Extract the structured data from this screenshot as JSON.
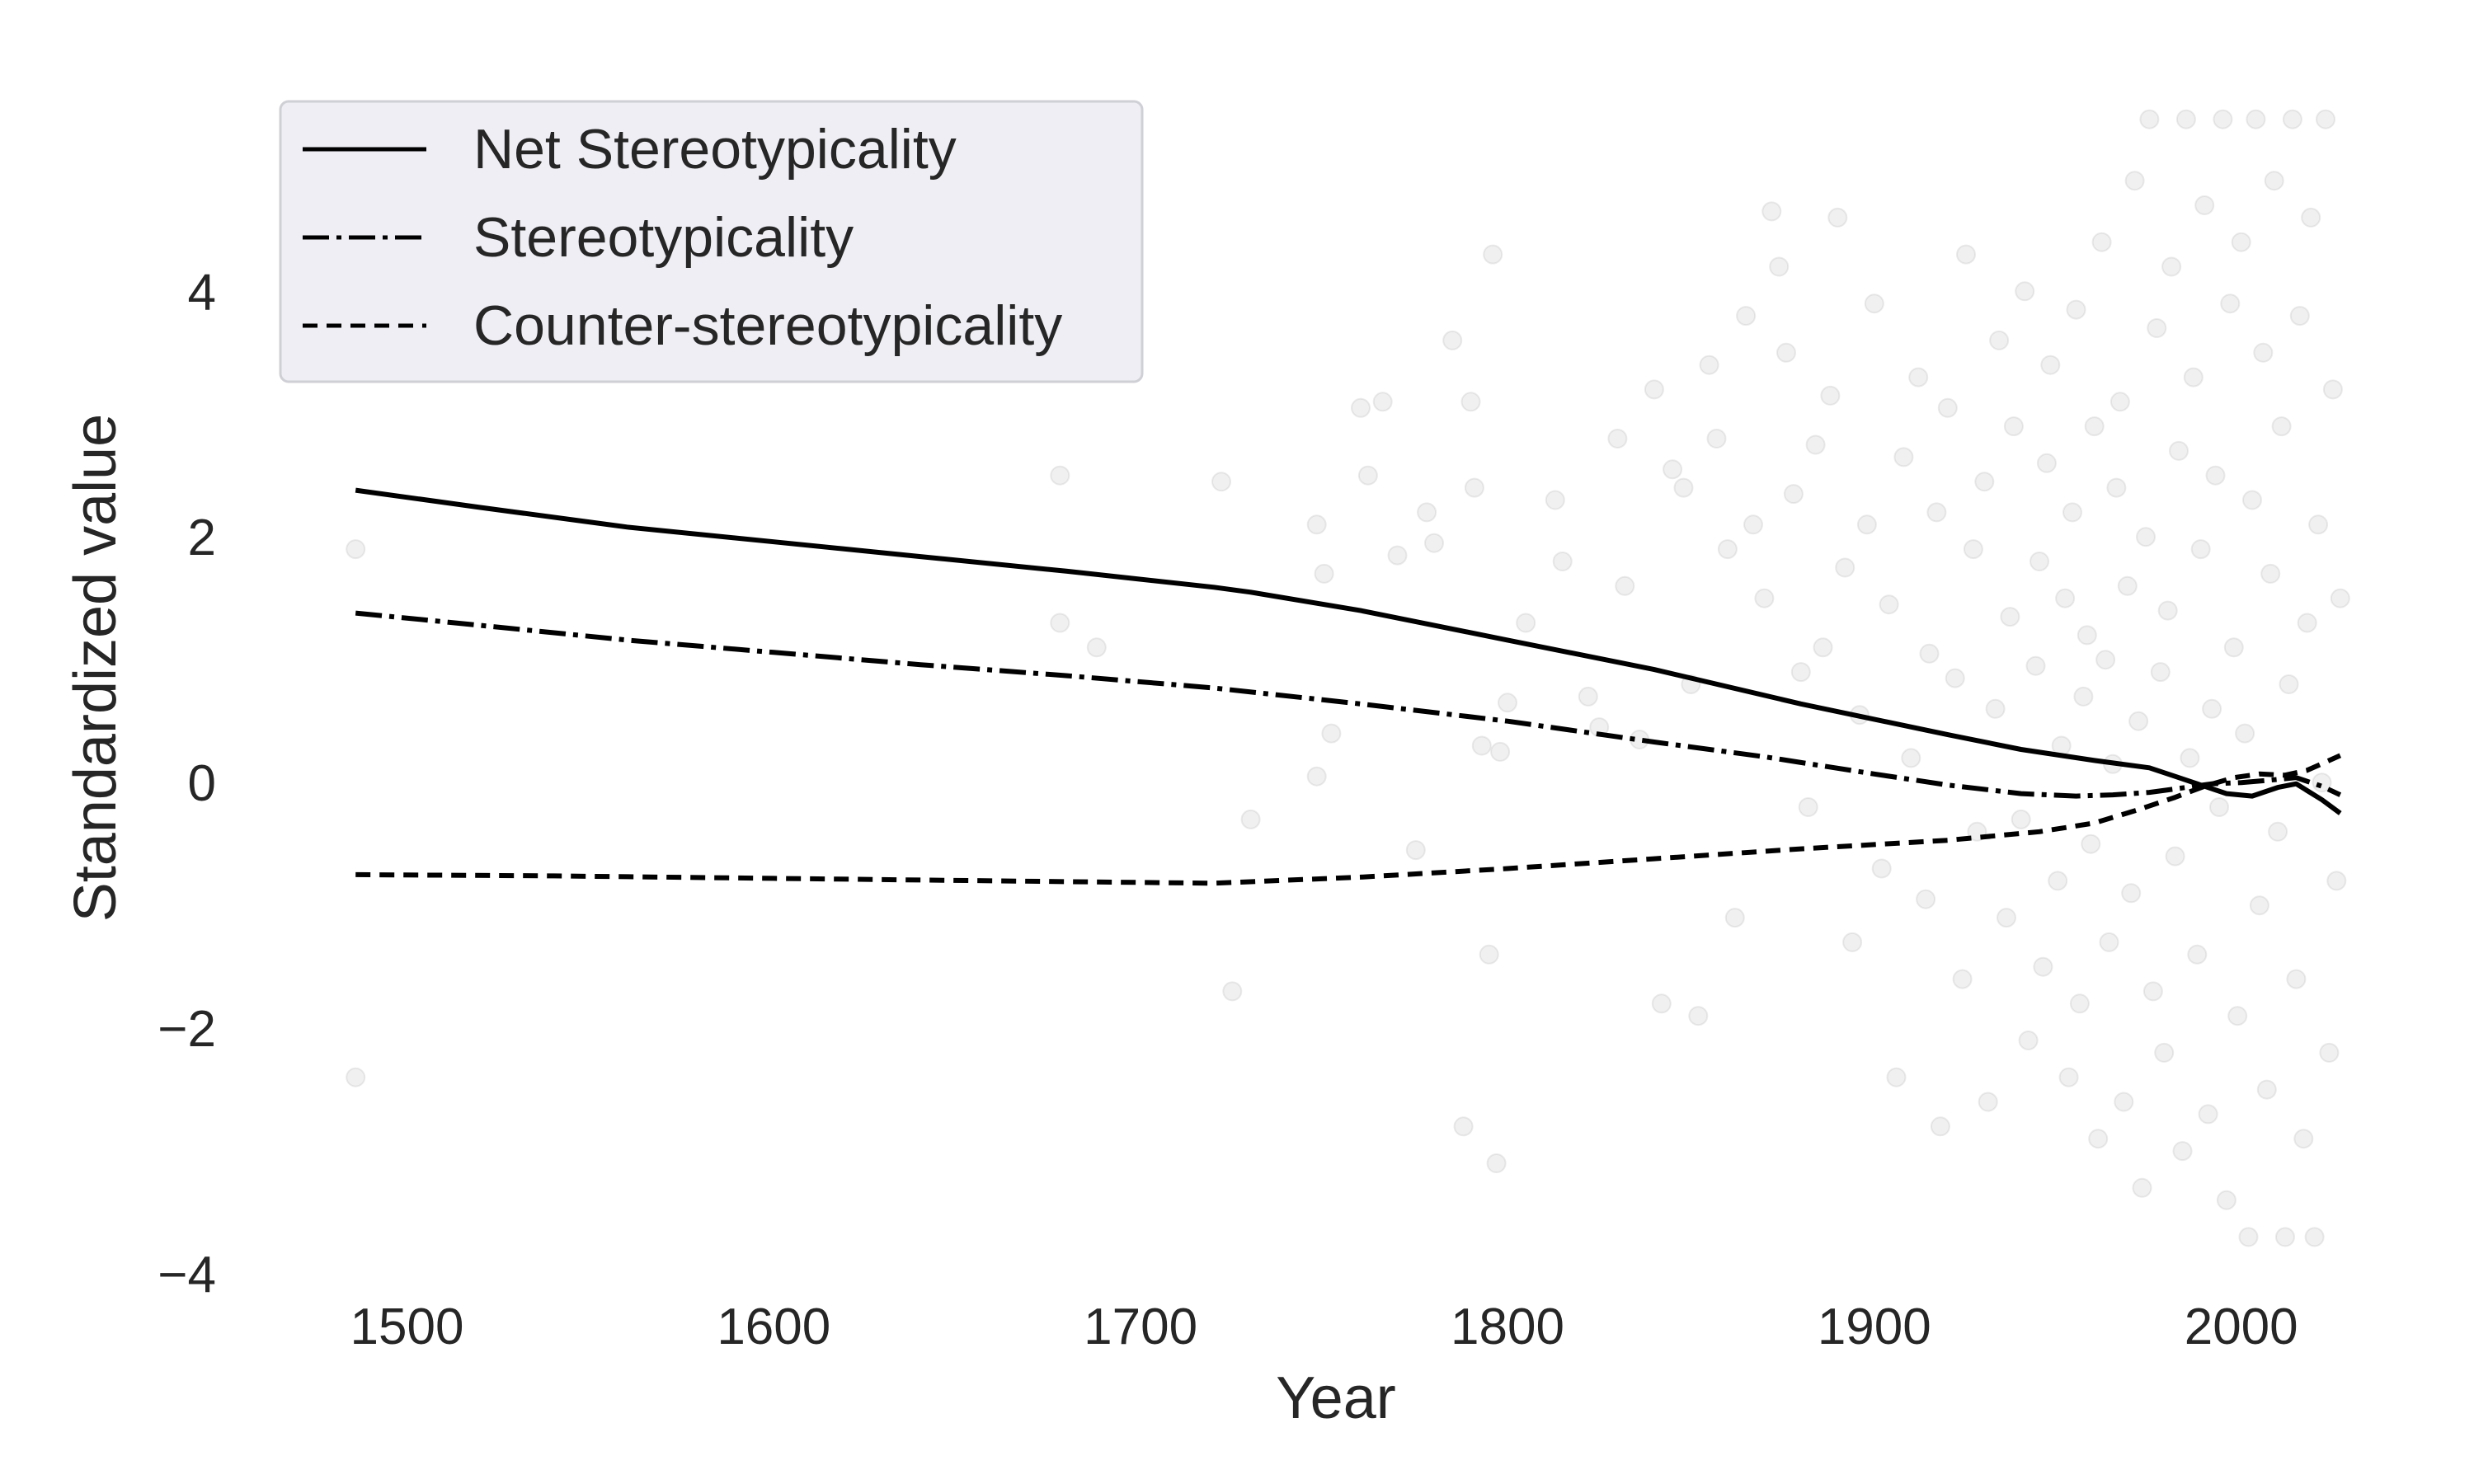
{
  "chart_data": {
    "type": "scatter",
    "title": "",
    "xlabel": "Year",
    "ylabel": "Standardized value",
    "xlim": [
      1470,
      2032
    ],
    "ylim": [
      -4.1,
      5.7
    ],
    "xticks": [
      1500,
      1600,
      1700,
      1800,
      1900,
      2000
    ],
    "yticks": [
      -4,
      -2,
      0,
      2,
      4
    ],
    "xtick_labels": [
      "1500",
      "1600",
      "1700",
      "1800",
      "1900",
      "2000"
    ],
    "ytick_labels": [
      "−4",
      "−2",
      "0",
      "2",
      "4"
    ],
    "grid": false,
    "legend_position": "top-left",
    "scatter": {
      "name": "observations",
      "color": "#cccccc",
      "points": [
        [
          1486,
          1.9
        ],
        [
          1486,
          -2.4
        ],
        [
          1678,
          2.5
        ],
        [
          1678,
          1.3
        ],
        [
          1688,
          1.1
        ],
        [
          1722,
          2.45
        ],
        [
          1725,
          -1.7
        ],
        [
          1730,
          -0.3
        ],
        [
          1748,
          2.1
        ],
        [
          1748,
          0.05
        ],
        [
          1750,
          1.7
        ],
        [
          1752,
          0.4
        ],
        [
          1760,
          3.05
        ],
        [
          1762,
          2.5
        ],
        [
          1766,
          3.1
        ],
        [
          1770,
          1.85
        ],
        [
          1775,
          -0.55
        ],
        [
          1778,
          2.2
        ],
        [
          1780,
          1.95
        ],
        [
          1785,
          3.6
        ],
        [
          1788,
          -2.8
        ],
        [
          1790,
          3.1
        ],
        [
          1791,
          2.4
        ],
        [
          1793,
          0.3
        ],
        [
          1795,
          -1.4
        ],
        [
          1796,
          4.3
        ],
        [
          1797,
          -3.1
        ],
        [
          1798,
          0.25
        ],
        [
          1800,
          0.65
        ],
        [
          1805,
          1.3
        ],
        [
          1813,
          2.3
        ],
        [
          1815,
          1.8
        ],
        [
          1822,
          0.7
        ],
        [
          1825,
          0.45
        ],
        [
          1830,
          2.8
        ],
        [
          1832,
          1.6
        ],
        [
          1836,
          0.35
        ],
        [
          1840,
          3.2
        ],
        [
          1842,
          -1.8
        ],
        [
          1845,
          2.55
        ],
        [
          1848,
          2.4
        ],
        [
          1850,
          0.8
        ],
        [
          1852,
          -1.9
        ],
        [
          1855,
          3.4
        ],
        [
          1857,
          2.8
        ],
        [
          1860,
          1.9
        ],
        [
          1862,
          -1.1
        ],
        [
          1865,
          3.8
        ],
        [
          1867,
          2.1
        ],
        [
          1870,
          1.5
        ],
        [
          1872,
          4.65
        ],
        [
          1874,
          4.2
        ],
        [
          1876,
          3.5
        ],
        [
          1878,
          2.35
        ],
        [
          1880,
          0.9
        ],
        [
          1882,
          -0.2
        ],
        [
          1884,
          2.75
        ],
        [
          1886,
          1.1
        ],
        [
          1888,
          3.15
        ],
        [
          1890,
          4.6
        ],
        [
          1892,
          1.75
        ],
        [
          1894,
          -1.3
        ],
        [
          1896,
          0.55
        ],
        [
          1898,
          2.1
        ],
        [
          1900,
          3.9
        ],
        [
          1902,
          -0.7
        ],
        [
          1904,
          1.45
        ],
        [
          1906,
          -2.4
        ],
        [
          1908,
          2.65
        ],
        [
          1910,
          0.2
        ],
        [
          1912,
          3.3
        ],
        [
          1914,
          -0.95
        ],
        [
          1915,
          1.05
        ],
        [
          1917,
          2.2
        ],
        [
          1918,
          -2.8
        ],
        [
          1920,
          3.05
        ],
        [
          1922,
          0.85
        ],
        [
          1924,
          -1.6
        ],
        [
          1925,
          4.3
        ],
        [
          1927,
          1.9
        ],
        [
          1928,
          -0.4
        ],
        [
          1930,
          2.45
        ],
        [
          1931,
          -2.6
        ],
        [
          1933,
          0.6
        ],
        [
          1934,
          3.6
        ],
        [
          1936,
          -1.1
        ],
        [
          1937,
          1.35
        ],
        [
          1938,
          2.9
        ],
        [
          1940,
          -0.3
        ],
        [
          1941,
          4.0
        ],
        [
          1942,
          -2.1
        ],
        [
          1944,
          0.95
        ],
        [
          1945,
          1.8
        ],
        [
          1946,
          -1.5
        ],
        [
          1947,
          2.6
        ],
        [
          1948,
          3.4
        ],
        [
          1950,
          -0.8
        ],
        [
          1951,
          0.3
        ],
        [
          1952,
          1.5
        ],
        [
          1953,
          -2.4
        ],
        [
          1954,
          2.2
        ],
        [
          1955,
          3.85
        ],
        [
          1956,
          -1.8
        ],
        [
          1957,
          0.7
        ],
        [
          1958,
          1.2
        ],
        [
          1959,
          -0.5
        ],
        [
          1960,
          2.9
        ],
        [
          1961,
          -2.9
        ],
        [
          1962,
          4.4
        ],
        [
          1963,
          1.0
        ],
        [
          1964,
          -1.3
        ],
        [
          1965,
          0.15
        ],
        [
          1966,
          2.4
        ],
        [
          1967,
          3.1
        ],
        [
          1968,
          -2.6
        ],
        [
          1969,
          1.6
        ],
        [
          1970,
          -0.9
        ],
        [
          1971,
          4.9
        ],
        [
          1972,
          0.5
        ],
        [
          1973,
          -3.3
        ],
        [
          1974,
          2.0
        ],
        [
          1975,
          5.4
        ],
        [
          1976,
          -1.7
        ],
        [
          1977,
          3.7
        ],
        [
          1978,
          0.9
        ],
        [
          1979,
          -2.2
        ],
        [
          1980,
          1.4
        ],
        [
          1981,
          4.2
        ],
        [
          1982,
          -0.6
        ],
        [
          1983,
          2.7
        ],
        [
          1984,
          -3.0
        ],
        [
          1985,
          5.4
        ],
        [
          1986,
          0.2
        ],
        [
          1987,
          3.3
        ],
        [
          1988,
          -1.4
        ],
        [
          1989,
          1.9
        ],
        [
          1990,
          4.7
        ],
        [
          1991,
          -2.7
        ],
        [
          1992,
          0.6
        ],
        [
          1993,
          2.5
        ],
        [
          1994,
          -0.2
        ],
        [
          1995,
          5.4
        ],
        [
          1996,
          -3.4
        ],
        [
          1997,
          3.9
        ],
        [
          1998,
          1.1
        ],
        [
          1999,
          -1.9
        ],
        [
          2000,
          4.4
        ],
        [
          2001,
          0.4
        ],
        [
          2002,
          -3.7
        ],
        [
          2003,
          2.3
        ],
        [
          2004,
          5.4
        ],
        [
          2005,
          -1.0
        ],
        [
          2006,
          3.5
        ],
        [
          2007,
          -2.5
        ],
        [
          2008,
          1.7
        ],
        [
          2009,
          4.9
        ],
        [
          2010,
          -0.4
        ],
        [
          2011,
          2.9
        ],
        [
          2012,
          -3.7
        ],
        [
          2013,
          0.8
        ],
        [
          2014,
          5.4
        ],
        [
          2015,
          -1.6
        ],
        [
          2016,
          3.8
        ],
        [
          2017,
          -2.9
        ],
        [
          2018,
          1.3
        ],
        [
          2019,
          4.6
        ],
        [
          2020,
          -3.7
        ],
        [
          2021,
          2.1
        ],
        [
          2022,
          0.0
        ],
        [
          2023,
          5.4
        ],
        [
          2024,
          -2.2
        ],
        [
          2025,
          3.2
        ],
        [
          2026,
          -0.8
        ],
        [
          2027,
          1.5
        ]
      ]
    },
    "series": [
      {
        "name": "Net Stereotypicality",
        "style": "solid",
        "color": "#000000",
        "x": [
          1486,
          1520,
          1560,
          1600,
          1640,
          1680,
          1720,
          1730,
          1760,
          1800,
          1840,
          1880,
          1920,
          1940,
          1960,
          1975,
          1982,
          1990,
          1996,
          2003,
          2010,
          2015,
          2022,
          2027
        ],
        "y": [
          2.38,
          2.24,
          2.08,
          1.96,
          1.84,
          1.72,
          1.59,
          1.55,
          1.4,
          1.16,
          0.92,
          0.64,
          0.39,
          0.27,
          0.18,
          0.12,
          0.05,
          -0.03,
          -0.09,
          -0.11,
          -0.04,
          -0.01,
          -0.14,
          -0.25
        ]
      },
      {
        "name": "Stereotypicality",
        "style": "dashdot",
        "color": "#000000",
        "x": [
          1486,
          1520,
          1560,
          1600,
          1640,
          1680,
          1720,
          1760,
          1800,
          1840,
          1870,
          1900,
          1920,
          1940,
          1955,
          1965,
          1975,
          1985,
          1992,
          2000,
          2008,
          2015,
          2022,
          2027
        ],
        "y": [
          1.38,
          1.28,
          1.16,
          1.06,
          0.96,
          0.87,
          0.77,
          0.64,
          0.5,
          0.33,
          0.21,
          0.07,
          -0.02,
          -0.09,
          -0.11,
          -0.1,
          -0.08,
          -0.04,
          -0.01,
          0.0,
          0.02,
          0.04,
          -0.03,
          -0.1
        ]
      },
      {
        "name": "Counter-stereotypicality",
        "style": "dashed",
        "color": "#000000",
        "x": [
          1486,
          1540,
          1600,
          1660,
          1720,
          1760,
          1800,
          1840,
          1880,
          1920,
          1945,
          1960,
          1972,
          1982,
          1990,
          1998,
          2005,
          2012,
          2018,
          2024,
          2027
        ],
        "y": [
          -0.75,
          -0.76,
          -0.78,
          -0.8,
          -0.82,
          -0.77,
          -0.7,
          -0.62,
          -0.54,
          -0.47,
          -0.4,
          -0.33,
          -0.22,
          -0.12,
          -0.03,
          0.04,
          0.07,
          0.06,
          0.1,
          0.18,
          0.22
        ]
      }
    ]
  }
}
